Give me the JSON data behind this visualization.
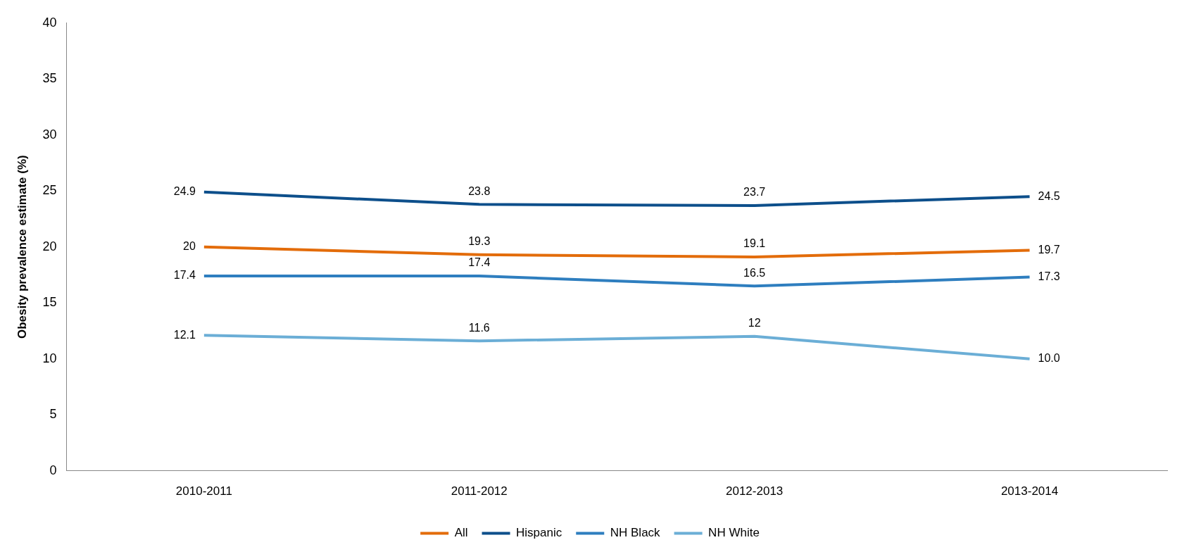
{
  "chart_data": {
    "type": "line",
    "ylabel": "Obesity prevalence estimate (%)",
    "categories": [
      "2010-2011",
      "2011-2012",
      "2012-2013",
      "2013-2014"
    ],
    "series": [
      {
        "name": "All",
        "color": "#e36c0a",
        "values": [
          20,
          19.3,
          19.1,
          19.7
        ],
        "value_labels": [
          "20",
          "19.3",
          "19.1",
          "19.7"
        ]
      },
      {
        "name": "Hispanic",
        "color": "#0d4f8b",
        "values": [
          24.9,
          23.8,
          23.7,
          24.5
        ],
        "value_labels": [
          "24.9",
          "23.8",
          "23.7",
          "24.5"
        ]
      },
      {
        "name": "NH Black",
        "color": "#2e7ebf",
        "values": [
          17.4,
          17.4,
          16.5,
          17.3
        ],
        "value_labels": [
          "17.4",
          "17.4",
          "16.5",
          "17.3"
        ]
      },
      {
        "name": "NH White",
        "color": "#6baed6",
        "values": [
          12.1,
          11.6,
          12,
          10
        ],
        "value_labels": [
          "12.1",
          "11.6",
          "12",
          "10.0"
        ]
      }
    ],
    "ylim": [
      0,
      40
    ],
    "yticks": [
      0,
      5,
      10,
      15,
      20,
      25,
      30,
      35,
      40
    ],
    "grid": false,
    "legend": "bottom",
    "line_style": "solid"
  }
}
